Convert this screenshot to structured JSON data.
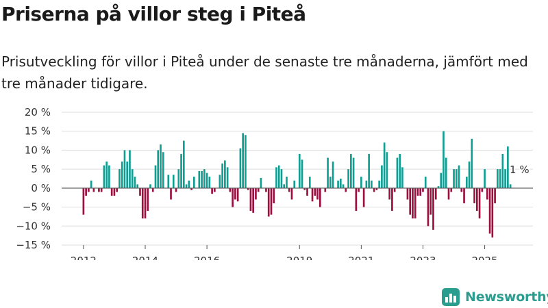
{
  "header": {
    "title": "Priserna på villor steg i Piteå",
    "subtitle": "Prisutveckling för villor i Piteå under de senaste tre månaderna, jämfört med tre månader tidigare."
  },
  "brand": {
    "name": "Newsworthy",
    "color": "#2a9d8f"
  },
  "colors": {
    "positive": "#0f9e92",
    "negative": "#9c0f3f",
    "grid": "#dddddd",
    "zero_line": "#555555"
  },
  "chart_data": {
    "type": "bar",
    "title": "",
    "xlabel": "",
    "ylabel": "",
    "ylim": [
      -15,
      20
    ],
    "y_ticks": [
      -15,
      -10,
      -5,
      0,
      5,
      10,
      15,
      20
    ],
    "y_tick_labels": [
      "−15 %",
      "−10 %",
      "−5 %",
      "0 %",
      "5 %",
      "10 %",
      "15 %",
      "20 %"
    ],
    "x_ticks": [
      {
        "label": "2012",
        "year": 2012
      },
      {
        "label": "2014",
        "year": 2014
      },
      {
        "label": "2016",
        "year": 2016
      },
      {
        "label": "2019",
        "year": 2019
      },
      {
        "label": "2021",
        "year": 2021
      },
      {
        "label": "2023",
        "year": 2023
      },
      {
        "label": "2025",
        "year": 2025
      }
    ],
    "x_start": "2012-01",
    "period": "month",
    "grid": true,
    "annotation": {
      "label": "1 %",
      "index": 171
    },
    "values": [
      -7,
      -2,
      -1,
      2,
      -1,
      0,
      -1,
      -1,
      6,
      7,
      6,
      -2,
      -2,
      -1,
      5,
      7,
      10,
      7,
      10,
      5,
      3,
      1,
      -2,
      -8,
      -8,
      -6,
      1,
      -1,
      6,
      10,
      11.5,
      9.5,
      0,
      3.5,
      -3,
      3.5,
      -1,
      5,
      9,
      12.5,
      1,
      2,
      -0.5,
      3,
      0,
      4.5,
      4.5,
      5,
      4,
      3,
      -1.5,
      -1,
      0,
      3.5,
      6.5,
      7.3,
      5.5,
      -1,
      -5,
      -3,
      -3.5,
      10.5,
      14.5,
      14,
      -0.5,
      -6,
      -6.5,
      -3,
      -1,
      2.7,
      0,
      -1,
      -7.5,
      -7,
      -4,
      5.5,
      6,
      5,
      1,
      3,
      -1,
      -3,
      2,
      0,
      9,
      7.5,
      -0.5,
      -2,
      3,
      -3.5,
      -2,
      -3,
      -5,
      0,
      -1,
      8,
      3,
      7,
      0,
      2,
      2.5,
      1,
      -1,
      5,
      9,
      8,
      -6,
      -1,
      3,
      -5,
      2,
      9,
      2,
      -1,
      -0.5,
      2,
      6,
      12,
      9.5,
      -3,
      -6,
      -1,
      8,
      9,
      5.5,
      0,
      -3,
      -7,
      -8,
      -8,
      -2,
      -2,
      -1,
      3,
      -10,
      -7,
      -11,
      -3,
      0.5,
      4,
      15,
      8,
      -3,
      -1,
      5,
      5,
      6,
      -1,
      -4,
      3,
      7,
      13,
      -4,
      -6,
      -8,
      -1,
      5,
      -3,
      -12,
      -13,
      -4,
      5,
      5,
      9,
      5,
      11,
      1
    ]
  }
}
